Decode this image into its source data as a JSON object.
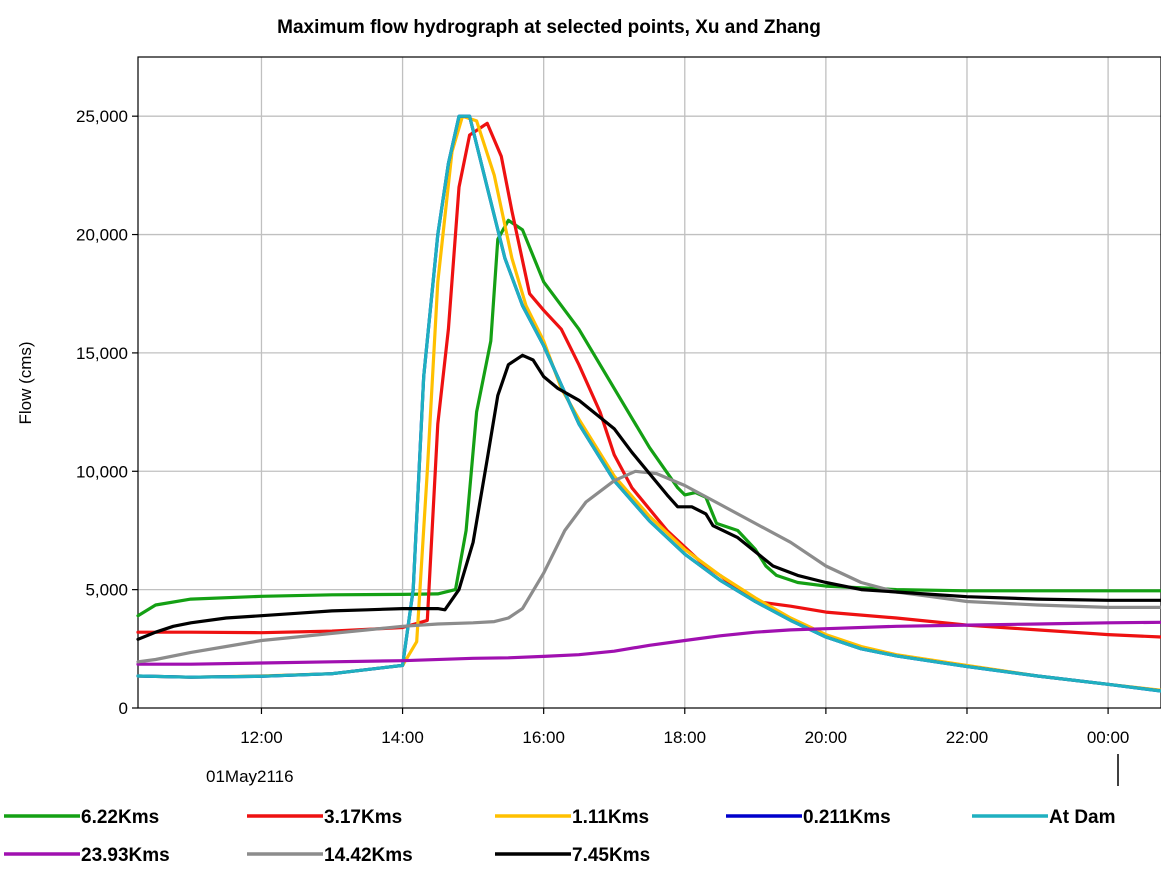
{
  "chart_data": {
    "type": "line",
    "title": "Maximum flow hydrograph at selected points, Xu and Zhang",
    "ylabel": "Flow (cms)",
    "xlabel": "",
    "date_label": "01May2116",
    "x_unit": "hours",
    "xlim": [
      10.25,
      24.75
    ],
    "ylim": [
      0,
      27500
    ],
    "x_ticks": [
      12,
      14,
      16,
      18,
      20,
      22,
      24
    ],
    "x_tick_labels": [
      "12:00",
      "14:00",
      "16:00",
      "18:00",
      "20:00",
      "22:00",
      "00:00"
    ],
    "y_ticks": [
      0,
      5000,
      10000,
      15000,
      20000,
      25000
    ],
    "y_tick_labels": [
      "0",
      "5,000",
      "10,000",
      "15,000",
      "20,000",
      "25,000"
    ],
    "grid": true,
    "legend_position": "bottom",
    "series": [
      {
        "name": "6.22Kms",
        "color": "#14a014",
        "points": [
          [
            10.25,
            3900
          ],
          [
            10.5,
            4350
          ],
          [
            11,
            4600
          ],
          [
            12,
            4720
          ],
          [
            13,
            4780
          ],
          [
            14,
            4800
          ],
          [
            14.5,
            4820
          ],
          [
            14.75,
            5000
          ],
          [
            14.9,
            7500
          ],
          [
            15.05,
            12500
          ],
          [
            15.25,
            15500
          ],
          [
            15.35,
            19800
          ],
          [
            15.5,
            20600
          ],
          [
            15.7,
            20200
          ],
          [
            16,
            18000
          ],
          [
            16.25,
            17000
          ],
          [
            16.5,
            16000
          ],
          [
            17,
            13500
          ],
          [
            17.5,
            11000
          ],
          [
            17.9,
            9300
          ],
          [
            18,
            9000
          ],
          [
            18.15,
            9100
          ],
          [
            18.3,
            8900
          ],
          [
            18.45,
            7800
          ],
          [
            18.75,
            7500
          ],
          [
            19,
            6700
          ],
          [
            19.15,
            6000
          ],
          [
            19.3,
            5600
          ],
          [
            19.6,
            5300
          ],
          [
            20,
            5150
          ],
          [
            21,
            5000
          ],
          [
            22,
            4950
          ],
          [
            23,
            4950
          ],
          [
            24,
            4950
          ],
          [
            24.75,
            4950
          ]
        ]
      },
      {
        "name": "3.17Kms",
        "color": "#ee1111",
        "points": [
          [
            10.25,
            3200
          ],
          [
            11,
            3200
          ],
          [
            12,
            3180
          ],
          [
            13,
            3250
          ],
          [
            14,
            3400
          ],
          [
            14.35,
            3700
          ],
          [
            14.5,
            12000
          ],
          [
            14.65,
            16000
          ],
          [
            14.8,
            22000
          ],
          [
            14.95,
            24200
          ],
          [
            15.1,
            24500
          ],
          [
            15.2,
            24700
          ],
          [
            15.4,
            23300
          ],
          [
            15.55,
            21000
          ],
          [
            15.8,
            17500
          ],
          [
            16,
            16800
          ],
          [
            16.25,
            16000
          ],
          [
            16.5,
            14500
          ],
          [
            16.8,
            12500
          ],
          [
            17,
            10700
          ],
          [
            17.25,
            9300
          ],
          [
            17.5,
            8400
          ],
          [
            17.75,
            7500
          ],
          [
            18,
            6800
          ],
          [
            18.25,
            6100
          ],
          [
            18.5,
            5600
          ],
          [
            18.75,
            5000
          ],
          [
            19,
            4500
          ],
          [
            19.5,
            4300
          ],
          [
            20,
            4050
          ],
          [
            21,
            3800
          ],
          [
            22,
            3500
          ],
          [
            23,
            3300
          ],
          [
            24,
            3100
          ],
          [
            24.75,
            3000
          ]
        ]
      },
      {
        "name": "1.11Kms",
        "color": "#ffc000",
        "points": [
          [
            10.25,
            1350
          ],
          [
            11,
            1300
          ],
          [
            12,
            1350
          ],
          [
            13,
            1450
          ],
          [
            14,
            1800
          ],
          [
            14.2,
            2800
          ],
          [
            14.35,
            10000
          ],
          [
            14.5,
            18000
          ],
          [
            14.7,
            23500
          ],
          [
            14.85,
            25000
          ],
          [
            15.05,
            24800
          ],
          [
            15.3,
            22500
          ],
          [
            15.55,
            19000
          ],
          [
            15.75,
            17000
          ],
          [
            16,
            15500
          ],
          [
            16.25,
            13500
          ],
          [
            16.5,
            12200
          ],
          [
            17,
            9800
          ],
          [
            17.5,
            8100
          ],
          [
            18,
            6700
          ],
          [
            18.5,
            5600
          ],
          [
            19,
            4650
          ],
          [
            19.5,
            3800
          ],
          [
            20,
            3100
          ],
          [
            20.5,
            2600
          ],
          [
            21,
            2250
          ],
          [
            22,
            1800
          ],
          [
            23,
            1350
          ],
          [
            24,
            1000
          ],
          [
            24.75,
            750
          ]
        ]
      },
      {
        "name": "0.211Kms",
        "color": "#0000cc",
        "points": [
          [
            10.25,
            1350
          ],
          [
            11,
            1300
          ],
          [
            12,
            1340
          ],
          [
            13,
            1450
          ],
          [
            14,
            1800
          ],
          [
            14.15,
            5000
          ],
          [
            14.3,
            14000
          ],
          [
            14.5,
            20000
          ],
          [
            14.65,
            23000
          ],
          [
            14.8,
            25000
          ],
          [
            14.95,
            25000
          ],
          [
            15.2,
            22000
          ],
          [
            15.45,
            19000
          ],
          [
            15.7,
            17000
          ],
          [
            16,
            15300
          ],
          [
            16.5,
            12000
          ],
          [
            17,
            9600
          ],
          [
            17.5,
            7900
          ],
          [
            18,
            6500
          ],
          [
            18.5,
            5400
          ],
          [
            19,
            4500
          ],
          [
            19.5,
            3700
          ],
          [
            20,
            3000
          ],
          [
            20.5,
            2500
          ],
          [
            21,
            2200
          ],
          [
            22,
            1750
          ],
          [
            23,
            1350
          ],
          [
            24,
            1000
          ],
          [
            24.75,
            720
          ]
        ]
      },
      {
        "name": "At Dam",
        "color": "#1fb0c0",
        "points": [
          [
            10.25,
            1350
          ],
          [
            11,
            1300
          ],
          [
            12,
            1340
          ],
          [
            13,
            1450
          ],
          [
            14,
            1800
          ],
          [
            14.15,
            5000
          ],
          [
            14.3,
            14000
          ],
          [
            14.5,
            20000
          ],
          [
            14.65,
            23000
          ],
          [
            14.8,
            25000
          ],
          [
            14.95,
            25000
          ],
          [
            15.2,
            22000
          ],
          [
            15.45,
            19000
          ],
          [
            15.7,
            17000
          ],
          [
            16,
            15300
          ],
          [
            16.5,
            12000
          ],
          [
            17,
            9600
          ],
          [
            17.5,
            7900
          ],
          [
            18,
            6500
          ],
          [
            18.5,
            5400
          ],
          [
            19,
            4500
          ],
          [
            19.5,
            3700
          ],
          [
            20,
            3000
          ],
          [
            20.5,
            2500
          ],
          [
            21,
            2200
          ],
          [
            22,
            1750
          ],
          [
            23,
            1350
          ],
          [
            24,
            1000
          ],
          [
            24.75,
            720
          ]
        ]
      },
      {
        "name": "23.93Kms",
        "color": "#a010b0",
        "points": [
          [
            10.25,
            1850
          ],
          [
            11,
            1850
          ],
          [
            12,
            1900
          ],
          [
            13,
            1950
          ],
          [
            14,
            2000
          ],
          [
            15,
            2100
          ],
          [
            15.5,
            2120
          ],
          [
            16,
            2180
          ],
          [
            16.5,
            2250
          ],
          [
            17,
            2400
          ],
          [
            17.5,
            2650
          ],
          [
            18,
            2850
          ],
          [
            18.5,
            3050
          ],
          [
            19,
            3200
          ],
          [
            19.5,
            3300
          ],
          [
            20,
            3350
          ],
          [
            21,
            3450
          ],
          [
            22,
            3500
          ],
          [
            23,
            3550
          ],
          [
            24,
            3600
          ],
          [
            24.75,
            3620
          ]
        ]
      },
      {
        "name": "14.42Kms",
        "color": "#8c8c8c",
        "points": [
          [
            10.25,
            1950
          ],
          [
            10.5,
            2050
          ],
          [
            11,
            2350
          ],
          [
            11.5,
            2600
          ],
          [
            12,
            2850
          ],
          [
            12.5,
            3000
          ],
          [
            13,
            3150
          ],
          [
            13.5,
            3300
          ],
          [
            14,
            3450
          ],
          [
            14.5,
            3550
          ],
          [
            15,
            3600
          ],
          [
            15.3,
            3650
          ],
          [
            15.5,
            3800
          ],
          [
            15.7,
            4200
          ],
          [
            16,
            5700
          ],
          [
            16.3,
            7500
          ],
          [
            16.6,
            8700
          ],
          [
            17,
            9600
          ],
          [
            17.3,
            10000
          ],
          [
            17.6,
            9900
          ],
          [
            18,
            9400
          ],
          [
            18.5,
            8600
          ],
          [
            19,
            7800
          ],
          [
            19.5,
            7000
          ],
          [
            20,
            6000
          ],
          [
            20.5,
            5300
          ],
          [
            21,
            4900
          ],
          [
            21.5,
            4700
          ],
          [
            22,
            4500
          ],
          [
            23,
            4350
          ],
          [
            24,
            4250
          ],
          [
            24.75,
            4250
          ]
        ]
      },
      {
        "name": "7.45Kms",
        "color": "#000000",
        "points": [
          [
            10.25,
            2900
          ],
          [
            10.5,
            3200
          ],
          [
            10.75,
            3450
          ],
          [
            11,
            3600
          ],
          [
            11.5,
            3800
          ],
          [
            12,
            3900
          ],
          [
            12.5,
            4000
          ],
          [
            13,
            4100
          ],
          [
            13.5,
            4150
          ],
          [
            14,
            4200
          ],
          [
            14.5,
            4200
          ],
          [
            14.6,
            4150
          ],
          [
            14.8,
            5000
          ],
          [
            15,
            7000
          ],
          [
            15.2,
            10500
          ],
          [
            15.35,
            13200
          ],
          [
            15.5,
            14500
          ],
          [
            15.7,
            14900
          ],
          [
            15.85,
            14700
          ],
          [
            16,
            14000
          ],
          [
            16.2,
            13500
          ],
          [
            16.5,
            13000
          ],
          [
            17,
            11800
          ],
          [
            17.25,
            10800
          ],
          [
            17.5,
            9900
          ],
          [
            17.75,
            9000
          ],
          [
            17.9,
            8500
          ],
          [
            18.1,
            8500
          ],
          [
            18.3,
            8200
          ],
          [
            18.4,
            7700
          ],
          [
            18.75,
            7200
          ],
          [
            19,
            6600
          ],
          [
            19.25,
            6000
          ],
          [
            19.6,
            5600
          ],
          [
            20,
            5300
          ],
          [
            20.5,
            5000
          ],
          [
            21,
            4900
          ],
          [
            21.5,
            4800
          ],
          [
            22,
            4700
          ],
          [
            23,
            4600
          ],
          [
            24,
            4550
          ],
          [
            24.75,
            4550
          ]
        ]
      }
    ]
  }
}
